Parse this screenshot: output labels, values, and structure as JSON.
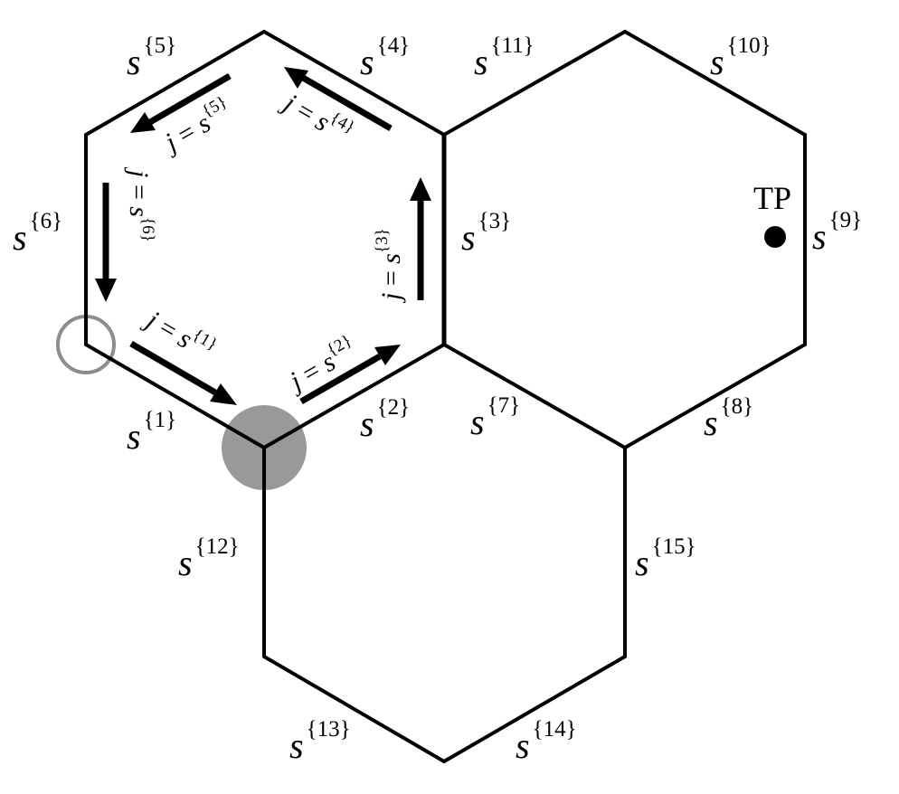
{
  "edges": [
    {
      "id": "s1",
      "base": "s",
      "sup": "{1}"
    },
    {
      "id": "s2",
      "base": "s",
      "sup": "{2}"
    },
    {
      "id": "s3",
      "base": "s",
      "sup": "{3}"
    },
    {
      "id": "s4",
      "base": "s",
      "sup": "{4}"
    },
    {
      "id": "s5",
      "base": "s",
      "sup": "{5}"
    },
    {
      "id": "s6",
      "base": "s",
      "sup": "{6}"
    },
    {
      "id": "s7",
      "base": "s",
      "sup": "{7}"
    },
    {
      "id": "s8",
      "base": "s",
      "sup": "{8}"
    },
    {
      "id": "s9",
      "base": "s",
      "sup": "{9}"
    },
    {
      "id": "s10",
      "base": "s",
      "sup": "{10}"
    },
    {
      "id": "s11",
      "base": "s",
      "sup": "{11}"
    },
    {
      "id": "s12",
      "base": "s",
      "sup": "{12}"
    },
    {
      "id": "s13",
      "base": "s",
      "sup": "{13}"
    },
    {
      "id": "s14",
      "base": "s",
      "sup": "{14}"
    },
    {
      "id": "s15",
      "base": "s",
      "sup": "{15}"
    }
  ],
  "arrows": [
    {
      "id": "a1",
      "var": "j",
      "eq": " = ",
      "base": "s",
      "sup": "{1}"
    },
    {
      "id": "a2",
      "var": "j",
      "eq": " = ",
      "base": "s",
      "sup": "{2}"
    },
    {
      "id": "a3",
      "var": "j",
      "eq": " = ",
      "base": "s",
      "sup": "{3}"
    },
    {
      "id": "a4",
      "var": "j",
      "eq": " = ",
      "base": "s",
      "sup": "{4}"
    },
    {
      "id": "a5",
      "var": "j",
      "eq": " = ",
      "base": "s",
      "sup": "{5}"
    },
    {
      "id": "a6",
      "var": "j",
      "eq": " = ",
      "base": "s",
      "sup": "{6}"
    }
  ],
  "tp_label": "TP",
  "colors": {
    "line": "#000000",
    "filled_marker": "#999999",
    "open_marker": "#8c8c8c",
    "tp_dot": "#000000"
  }
}
